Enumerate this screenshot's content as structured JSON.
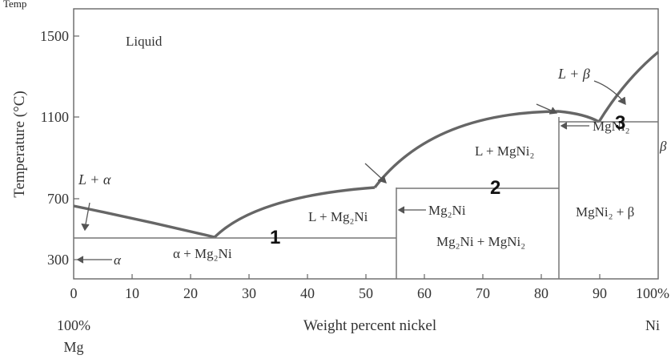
{
  "page_top_label": "Temp",
  "diagram": {
    "y_axis_label": "Temperature (°C)",
    "x_axis_label": "Weight percent nickel",
    "left_end": [
      "100%",
      "Mg"
    ],
    "right_end": [
      "100%",
      "Ni"
    ],
    "x_ticks": [
      "0",
      "10",
      "20",
      "30",
      "40",
      "50",
      "60",
      "70",
      "80",
      "90",
      "100%"
    ],
    "y_ticks": [
      "1500",
      "1100",
      "700",
      "300"
    ],
    "regions": {
      "liquid": "Liquid",
      "l_alpha": "L + α",
      "alpha": "α",
      "alpha_mg2ni": "α + Mg₂Ni",
      "l_mg2ni": "L + Mg₂Ni",
      "mg2ni": "Mg₂Ni",
      "mg2ni_mgni2": "Mg₂Ni + MgNi₂",
      "l_mgni2": "L + MgNi₂",
      "mgni2": "MgNi₂",
      "mgni2_beta": "MgNi₂ + β",
      "l_beta": "L + β",
      "beta": "β"
    },
    "markers": [
      "1",
      "2",
      "3"
    ]
  }
}
